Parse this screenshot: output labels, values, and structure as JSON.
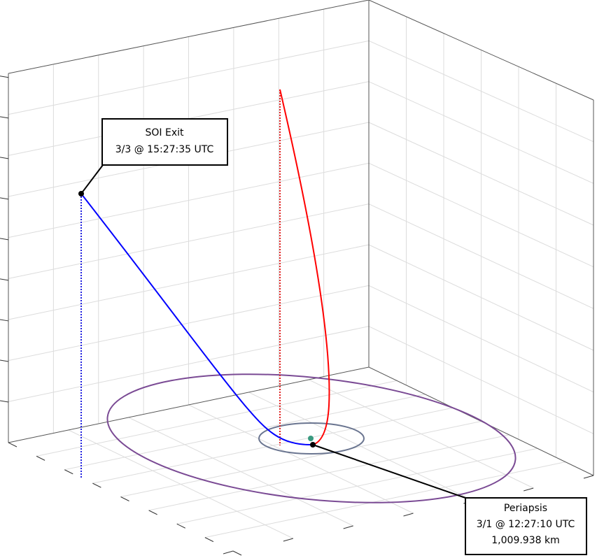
{
  "annotations": [
    {
      "lines": [
        "SOI Exit",
        "3/3 @ 15:27:35 UTC"
      ]
    },
    {
      "lines": [
        "Periapsis",
        "3/1 @ 12:27:10 UTC",
        "1,009.938 km"
      ]
    }
  ]
}
